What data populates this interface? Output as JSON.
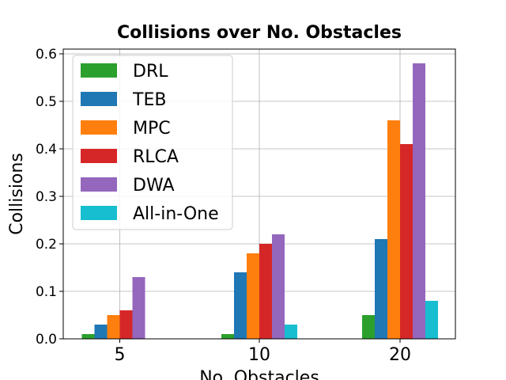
{
  "chart_data": {
    "type": "bar",
    "title": "Collisions over No. Obstacles",
    "xlabel": "No. Obstacles",
    "ylabel": "Collisions",
    "categories": [
      "5",
      "10",
      "20"
    ],
    "ylim": [
      0,
      0.61
    ],
    "yticks": [
      "0.0",
      "0.1",
      "0.2",
      "0.3",
      "0.4",
      "0.5",
      "0.6"
    ],
    "grid": true,
    "legend_position": "top-left",
    "series": [
      {
        "name": "DRL",
        "color": "#2ca02c",
        "values": [
          0.01,
          0.01,
          0.05
        ]
      },
      {
        "name": "TEB",
        "color": "#1f77b4",
        "values": [
          0.03,
          0.14,
          0.21
        ]
      },
      {
        "name": "MPC",
        "color": "#ff7f0e",
        "values": [
          0.05,
          0.18,
          0.46
        ]
      },
      {
        "name": "RLCA",
        "color": "#d62728",
        "values": [
          0.06,
          0.2,
          0.41
        ]
      },
      {
        "name": "DWA",
        "color": "#9467bd",
        "values": [
          0.13,
          0.22,
          0.58
        ]
      },
      {
        "name": "All-in-One",
        "color": "#17becf",
        "values": [
          0.0,
          0.03,
          0.08
        ]
      }
    ]
  }
}
